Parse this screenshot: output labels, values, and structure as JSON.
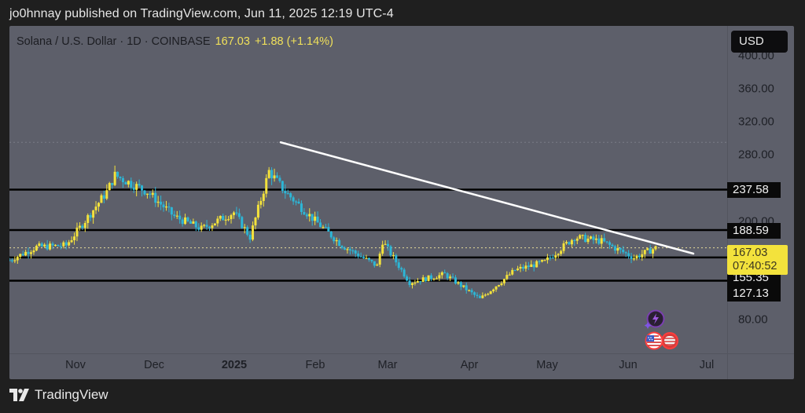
{
  "header": {
    "publish_line": "jo0hnnay published on TradingView.com, Jun 11, 2025 12:19 UTC-4"
  },
  "legend": {
    "symbol": "Solana / U.S. Dollar · 1D · COINBASE",
    "last": "167.03",
    "change": "+1.88 (+1.14%)"
  },
  "price_axis": {
    "currency_button": "USD",
    "ticks": [
      "400.00",
      "360.00",
      "320.00",
      "280.00",
      "200.00",
      "80.00"
    ],
    "level_tags": [
      "237.58",
      "188.59",
      "155.35",
      "127.13"
    ],
    "current_price": "167.03",
    "countdown": "07:40:52"
  },
  "time_axis": {
    "labels": [
      "Nov",
      "Dec",
      "2025",
      "Feb",
      "Mar",
      "Apr",
      "May",
      "Jun",
      "Jul"
    ]
  },
  "footer": {
    "brand": "TradingView"
  },
  "colors": {
    "background": "#1f1f1f",
    "chart_bg": "#5d5f6a",
    "up_candle": "#f3e23c",
    "down_candle": "#2db6d6",
    "trendline": "#ffffff",
    "levels": "#000000",
    "price_tag": "#f3e23c"
  },
  "chart_data": {
    "type": "candlestick",
    "title": "Solana / U.S. Dollar · 1D · COINBASE",
    "xlabel": "",
    "ylabel": "USD",
    "ylim": [
      60,
      410
    ],
    "grid": false,
    "x_ticks": [
      "Nov",
      "Dec",
      "2025",
      "Feb",
      "Mar",
      "Apr",
      "May",
      "Jun",
      "Jul"
    ],
    "y_ticks": [
      80,
      200,
      280,
      320,
      360,
      400
    ],
    "last_price": 167.03,
    "change": 1.88,
    "change_pct": 1.14,
    "horizontal_levels": [
      237.58,
      188.59,
      155.35,
      127.13
    ],
    "dotted_levels": [
      295,
      167.03
    ],
    "trendline": {
      "from": {
        "date": "2025-01-19",
        "price": 295
      },
      "to": {
        "date": "2025-06-25",
        "price": 160
      }
    },
    "approx_close_series": {
      "dates": [
        "2024-10-15",
        "2024-10-25",
        "2024-11-05",
        "2024-11-12",
        "2024-11-20",
        "2024-11-23",
        "2024-12-05",
        "2024-12-15",
        "2024-12-25",
        "2025-01-06",
        "2025-01-12",
        "2025-01-19",
        "2025-01-25",
        "2025-02-05",
        "2025-02-15",
        "2025-02-28",
        "2025-03-02",
        "2025-03-12",
        "2025-03-25",
        "2025-04-07",
        "2025-04-20",
        "2025-05-01",
        "2025-05-12",
        "2025-05-22",
        "2025-06-03",
        "2025-06-11"
      ],
      "values": [
        152,
        168,
        170,
        200,
        235,
        255,
        235,
        205,
        190,
        210,
        180,
        260,
        235,
        200,
        170,
        145,
        175,
        125,
        135,
        105,
        140,
        150,
        180,
        175,
        155,
        167
      ]
    }
  }
}
